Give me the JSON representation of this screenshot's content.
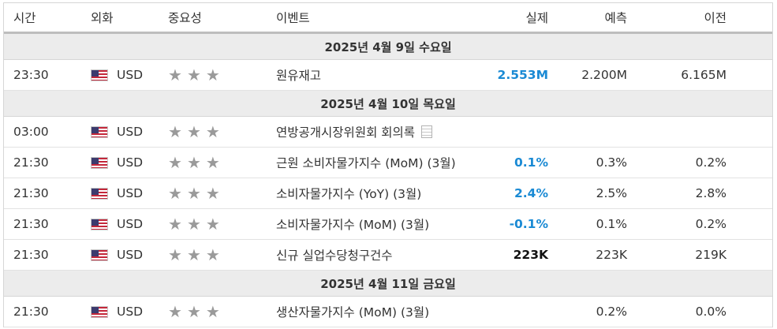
{
  "header": {
    "time": "시간",
    "currency": "외화",
    "importance": "중요성",
    "event": "이벤트",
    "actual": "실제",
    "forecast": "예측",
    "previous": "이전"
  },
  "days": [
    {
      "date": "2025년 4월 9일 수요일",
      "events": [
        {
          "time": "23:30",
          "currency": "USD",
          "stars": 3,
          "event": "원유재고",
          "actual": "2.553M",
          "actual_color": "#1a8ad4",
          "forecast": "2.200M",
          "previous": "6.165M",
          "has_doc_icon": false
        }
      ]
    },
    {
      "date": "2025년 4월 10일 목요일",
      "events": [
        {
          "time": "03:00",
          "currency": "USD",
          "stars": 3,
          "event": "연방공개시장위원회 회의록",
          "actual": "",
          "forecast": "",
          "previous": "",
          "has_doc_icon": true
        },
        {
          "time": "21:30",
          "currency": "USD",
          "stars": 3,
          "event": "근원 소비자물가지수 (MoM) (3월)",
          "actual": "0.1%",
          "actual_color": "#1a8ad4",
          "forecast": "0.3%",
          "previous": "0.2%",
          "has_doc_icon": false
        },
        {
          "time": "21:30",
          "currency": "USD",
          "stars": 3,
          "event": "소비자물가지수 (YoY) (3월)",
          "actual": "2.4%",
          "actual_color": "#1a8ad4",
          "forecast": "2.5%",
          "previous": "2.8%",
          "has_doc_icon": false
        },
        {
          "time": "21:30",
          "currency": "USD",
          "stars": 3,
          "event": "소비자물가지수 (MoM) (3월)",
          "actual": "-0.1%",
          "actual_color": "#1a8ad4",
          "forecast": "0.1%",
          "previous": "0.2%",
          "has_doc_icon": false
        },
        {
          "time": "21:30",
          "currency": "USD",
          "stars": 3,
          "event": "신규 실업수당청구건수",
          "actual": "223K",
          "actual_color": "#111111",
          "forecast": "223K",
          "previous": "219K",
          "has_doc_icon": false
        }
      ]
    },
    {
      "date": "2025년 4월 11일 금요일",
      "events": [
        {
          "time": "21:30",
          "currency": "USD",
          "stars": 3,
          "event": "생산자물가지수 (MoM) (3월)",
          "actual": "",
          "forecast": "0.2%",
          "previous": "0.0%",
          "has_doc_icon": false
        }
      ]
    }
  ],
  "icons": {
    "flag": "us-flag-icon",
    "star": "star-icon",
    "doc": "document-icon"
  }
}
